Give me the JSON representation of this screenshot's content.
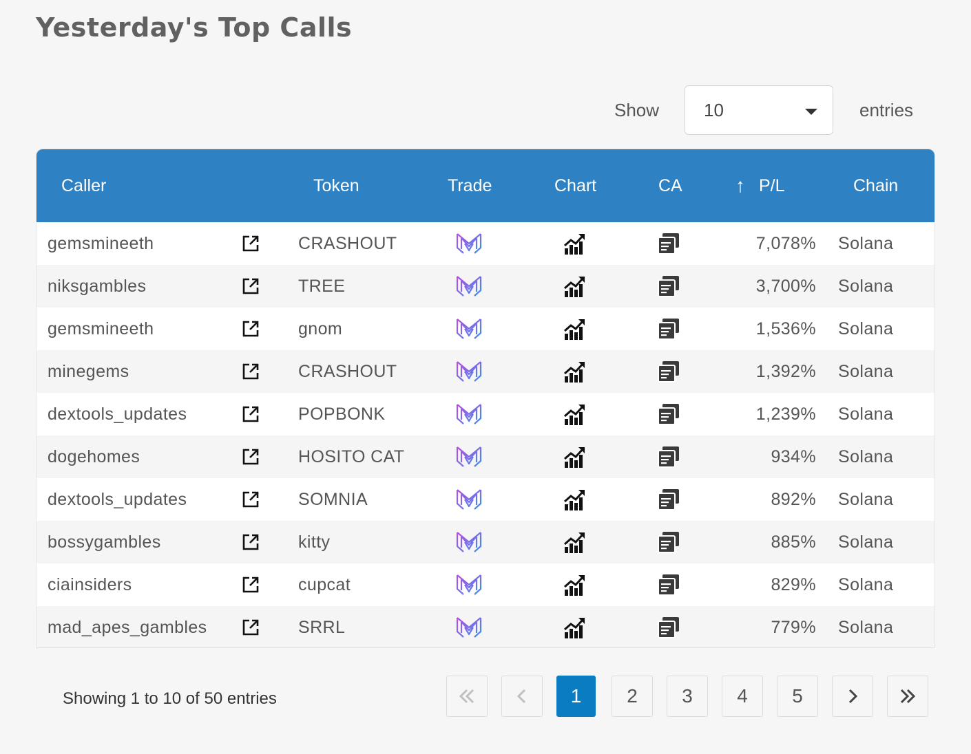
{
  "title": "Yesterday's Top Calls",
  "length": {
    "show_label": "Show",
    "selected": "10",
    "entries_label": "entries"
  },
  "columns": {
    "caller": "Caller",
    "token": "Token",
    "trade": "Trade",
    "chart": "Chart",
    "ca": "CA",
    "sort_arrow": "↑",
    "pl": "P/L",
    "chain": "Chain"
  },
  "rows": [
    {
      "caller": "gemsmineeth",
      "token": "CRASHOUT",
      "pl": "7,078%",
      "chain": "Solana"
    },
    {
      "caller": "niksgambles",
      "token": "TREE",
      "pl": "3,700%",
      "chain": "Solana"
    },
    {
      "caller": "gemsmineeth",
      "token": "gnom",
      "pl": "1,536%",
      "chain": "Solana"
    },
    {
      "caller": "minegems",
      "token": "CRASHOUT",
      "pl": "1,392%",
      "chain": "Solana"
    },
    {
      "caller": "dextools_updates",
      "token": "POPBONK",
      "pl": "1,239%",
      "chain": "Solana"
    },
    {
      "caller": "dogehomes",
      "token": "HOSITO CAT",
      "pl": "934%",
      "chain": "Solana"
    },
    {
      "caller": "dextools_updates",
      "token": "SOMNIA",
      "pl": "892%",
      "chain": "Solana"
    },
    {
      "caller": "bossygambles",
      "token": "kitty",
      "pl": "885%",
      "chain": "Solana"
    },
    {
      "caller": "ciainsiders",
      "token": "cupcat",
      "pl": "829%",
      "chain": "Solana"
    },
    {
      "caller": "mad_apes_gambles",
      "token": "SRRL",
      "pl": "779%",
      "chain": "Solana"
    }
  ],
  "icons": {
    "link": "external-link-icon",
    "trade": "trade-logo-icon",
    "chart": "chart-icon",
    "ca": "copy-icon"
  },
  "colors": {
    "header": "#2e81c2",
    "active_page": "#0a7cc1",
    "trade_icon_start": "#b84de0",
    "trade_icon_end": "#3b8ff0"
  },
  "info": "Showing 1 to 10 of 50 entries",
  "pagination": {
    "first": "«",
    "prev": "‹",
    "next": "›",
    "last": "»",
    "pages": [
      "1",
      "2",
      "3",
      "4",
      "5"
    ],
    "current": "1"
  }
}
